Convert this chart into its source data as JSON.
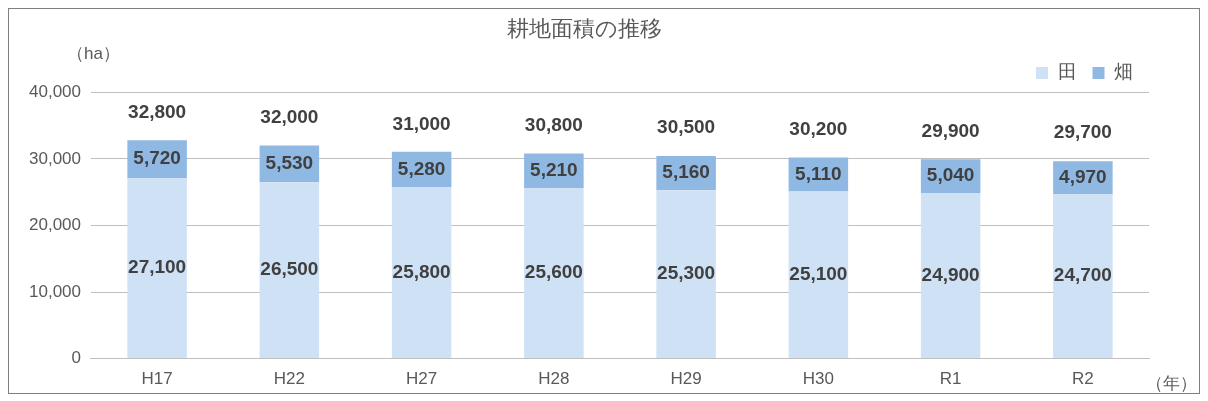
{
  "chart_data": {
    "type": "bar",
    "title": "耕地面積の推移",
    "ylabel": "（ha）",
    "xlabel": "（年）",
    "categories": [
      "H17",
      "H22",
      "H27",
      "H28",
      "H29",
      "H30",
      "R1",
      "R2"
    ],
    "series": [
      {
        "name": "田",
        "color": "#cfe1f5",
        "values": [
          27100,
          26500,
          25800,
          25600,
          25300,
          25100,
          24900,
          24700
        ],
        "value_labels": [
          "27,100",
          "26,500",
          "25,800",
          "25,600",
          "25,300",
          "25,100",
          "24,900",
          "24,700"
        ]
      },
      {
        "name": "畑",
        "color": "#8fb8e3",
        "values": [
          5720,
          5530,
          5280,
          5210,
          5160,
          5110,
          5040,
          4970
        ],
        "value_labels": [
          "5,720",
          "5,530",
          "5,280",
          "5,210",
          "5,160",
          "5,110",
          "5,040",
          "4,970"
        ]
      }
    ],
    "stacked": true,
    "ylim": [
      0,
      40000
    ],
    "yticks": [
      0,
      {
        "value": 10000,
        "label": "10,000"
      },
      {
        "value": 20000,
        "label": "20,000"
      },
      {
        "value": 30000,
        "label": "30,000"
      },
      {
        "value": 40000,
        "label": "40,000"
      }
    ],
    "grid": "y",
    "legend": "top right",
    "annotations": [
      {
        "text": "32,800",
        "x": "H17",
        "y": 32800
      },
      {
        "text": "32,000",
        "x": "H22",
        "y": 32000
      },
      {
        "text": "31,000",
        "x": "H27",
        "y": 31000
      },
      {
        "text": "30,800",
        "x": "H28",
        "y": 30800
      },
      {
        "text": "30,500",
        "x": "H29",
        "y": 30500
      },
      {
        "text": "30,200",
        "x": "H30",
        "y": 30200
      },
      {
        "text": "29,900",
        "x": "R1",
        "y": 29900
      },
      {
        "text": "29,700",
        "x": "R2",
        "y": 29700
      }
    ]
  }
}
